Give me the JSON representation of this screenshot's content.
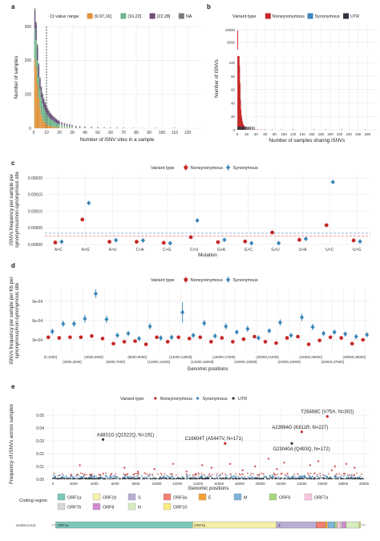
{
  "panels": {
    "a": "a",
    "b": "b",
    "c": "c",
    "d": "d",
    "e": "e"
  },
  "colors": {
    "ct1": "#e0923a",
    "ct2": "#6fb58a",
    "ct3": "#6a4e7c",
    "ct4": "#7a7a7a",
    "nonsyn": "#c62828",
    "syn": "#3a86b8",
    "utr": "#2e3540",
    "dash_red": "#e06060",
    "dash_blue": "#6090c8"
  },
  "chart_data": [
    {
      "id": "a",
      "type": "bar",
      "title": "",
      "xlabel": "Number of iSNV sites in a sample",
      "ylabel": "Number of samples",
      "legend_title": "Ct value range",
      "series": [
        {
          "name": "(9.97,16]"
        },
        {
          "name": "(16,22]"
        },
        {
          "name": "(22,28]"
        },
        {
          "name": "NA"
        }
      ],
      "xlim": [
        0,
        130
      ],
      "ylim": [
        0,
        300
      ],
      "xticks": [
        "0",
        "10",
        "20",
        "30",
        "40",
        "50",
        "60",
        "70",
        "80",
        "90",
        "100",
        "110",
        "120"
      ],
      "yticks": [
        "0",
        "100",
        "200",
        "300"
      ],
      "vline_x": 10,
      "bins": [
        {
          "x": 1,
          "v": [
            205,
            90,
            50,
            8
          ]
        },
        {
          "x": 2,
          "v": [
            180,
            80,
            45,
            8
          ]
        },
        {
          "x": 3,
          "v": [
            130,
            70,
            40,
            7
          ]
        },
        {
          "x": 4,
          "v": [
            90,
            60,
            35,
            6
          ]
        },
        {
          "x": 5,
          "v": [
            60,
            55,
            30,
            5
          ]
        },
        {
          "x": 6,
          "v": [
            40,
            50,
            28,
            5
          ]
        },
        {
          "x": 7,
          "v": [
            28,
            45,
            26,
            4
          ]
        },
        {
          "x": 8,
          "v": [
            20,
            40,
            24,
            4
          ]
        },
        {
          "x": 9,
          "v": [
            15,
            36,
            22,
            4
          ]
        },
        {
          "x": 10,
          "v": [
            12,
            32,
            20,
            3
          ]
        },
        {
          "x": 11,
          "v": [
            10,
            28,
            18,
            3
          ]
        },
        {
          "x": 12,
          "v": [
            8,
            25,
            16,
            3
          ]
        },
        {
          "x": 13,
          "v": [
            6,
            22,
            15,
            3
          ]
        },
        {
          "x": 14,
          "v": [
            5,
            20,
            14,
            2
          ]
        },
        {
          "x": 15,
          "v": [
            4,
            18,
            13,
            2
          ]
        },
        {
          "x": 16,
          "v": [
            4,
            16,
            12,
            2
          ]
        },
        {
          "x": 17,
          "v": [
            3,
            14,
            11,
            2
          ]
        },
        {
          "x": 18,
          "v": [
            3,
            12,
            10,
            2
          ]
        },
        {
          "x": 19,
          "v": [
            2,
            11,
            9,
            2
          ]
        },
        {
          "x": 20,
          "v": [
            2,
            10,
            9,
            1
          ]
        },
        {
          "x": 22,
          "v": [
            2,
            8,
            7,
            1
          ]
        },
        {
          "x": 24,
          "v": [
            1,
            7,
            6,
            1
          ]
        },
        {
          "x": 26,
          "v": [
            1,
            6,
            5,
            1
          ]
        },
        {
          "x": 28,
          "v": [
            1,
            5,
            5,
            1
          ]
        },
        {
          "x": 30,
          "v": [
            1,
            4,
            4,
            1
          ]
        },
        {
          "x": 33,
          "v": [
            0,
            3,
            3,
            1
          ]
        },
        {
          "x": 36,
          "v": [
            0,
            3,
            3,
            0
          ]
        },
        {
          "x": 40,
          "v": [
            0,
            2,
            2,
            1
          ]
        },
        {
          "x": 45,
          "v": [
            0,
            2,
            2,
            0
          ]
        },
        {
          "x": 50,
          "v": [
            0,
            1,
            2,
            0
          ]
        },
        {
          "x": 55,
          "v": [
            0,
            1,
            1,
            1
          ]
        },
        {
          "x": 60,
          "v": [
            0,
            1,
            1,
            0
          ]
        },
        {
          "x": 65,
          "v": [
            0,
            1,
            1,
            0
          ]
        },
        {
          "x": 70,
          "v": [
            0,
            1,
            1,
            0
          ]
        },
        {
          "x": 78,
          "v": [
            0,
            0,
            1,
            0
          ]
        },
        {
          "x": 85,
          "v": [
            0,
            1,
            0,
            0
          ]
        },
        {
          "x": 95,
          "v": [
            0,
            0,
            1,
            0
          ]
        },
        {
          "x": 110,
          "v": [
            0,
            0,
            1,
            0
          ]
        }
      ]
    },
    {
      "id": "b",
      "type": "bar",
      "title": "",
      "xlabel": "Number of samples sharing iSNVs",
      "ylabel": "Number of iSNVs",
      "legend_title": "Variant type",
      "series": [
        {
          "name": "Nonsynonymous"
        },
        {
          "name": "Synonymous"
        },
        {
          "name": "UTR"
        }
      ],
      "xticks": [
        "0",
        "20",
        "40",
        "60",
        "80",
        "100",
        "120",
        "140",
        "160",
        "180",
        "200",
        "220",
        "240",
        "260",
        "280"
      ],
      "yticks_upper": [
        "5000",
        "10000"
      ],
      "yticks_lower": [
        "0",
        "20",
        "40",
        "60",
        "80",
        "100"
      ],
      "xlim": [
        0,
        300
      ],
      "bins": [
        {
          "x": 1,
          "v": [
            9800,
            0,
            0
          ]
        },
        {
          "x": 2,
          "v": [
            1900,
            0,
            0
          ]
        },
        {
          "x": 3,
          "v": [
            520,
            0,
            0
          ]
        },
        {
          "x": 4,
          "v": [
            210,
            0,
            0
          ]
        },
        {
          "x": 5,
          "v": [
            96,
            0,
            0
          ]
        },
        {
          "x": 6,
          "v": [
            70,
            0,
            0
          ]
        },
        {
          "x": 7,
          "v": [
            45,
            0,
            0
          ]
        },
        {
          "x": 8,
          "v": [
            30,
            0,
            0
          ]
        },
        {
          "x": 9,
          "v": [
            22,
            0,
            0
          ]
        },
        {
          "x": 10,
          "v": [
            17,
            0,
            0
          ]
        },
        {
          "x": 11,
          "v": [
            13,
            0,
            0
          ]
        },
        {
          "x": 12,
          "v": [
            10,
            0,
            0
          ]
        },
        {
          "x": 13,
          "v": [
            8,
            0,
            0
          ]
        },
        {
          "x": 14,
          "v": [
            7,
            0,
            0
          ]
        },
        {
          "x": 15,
          "v": [
            6,
            0,
            0
          ]
        },
        {
          "x": 17,
          "v": [
            5,
            0,
            0
          ]
        },
        {
          "x": 19,
          "v": [
            4,
            0,
            0
          ]
        },
        {
          "x": 22,
          "v": [
            3,
            0,
            0
          ]
        },
        {
          "x": 25,
          "v": [
            3,
            0,
            0
          ]
        },
        {
          "x": 28,
          "v": [
            2,
            0,
            0
          ]
        },
        {
          "x": 32,
          "v": [
            2,
            0,
            0
          ]
        },
        {
          "x": 36,
          "v": [
            2,
            0,
            0
          ]
        },
        {
          "x": 40,
          "v": [
            1,
            0,
            0
          ]
        },
        {
          "x": 45,
          "v": [
            1,
            0,
            0
          ]
        },
        {
          "x": 52,
          "v": [
            1,
            0,
            0
          ]
        },
        {
          "x": 60,
          "v": [
            1,
            0,
            0
          ]
        },
        {
          "x": 75,
          "v": [
            1,
            0,
            0
          ]
        },
        {
          "x": 95,
          "v": [
            1,
            0,
            0
          ]
        },
        {
          "x": 120,
          "v": [
            1,
            0,
            0
          ]
        },
        {
          "x": 165,
          "v": [
            1,
            0,
            0
          ]
        },
        {
          "x": 190,
          "v": [
            1,
            0,
            0
          ]
        },
        {
          "x": 225,
          "v": [
            1,
            0,
            0
          ]
        },
        {
          "x": 275,
          "v": [
            1,
            0,
            0
          ]
        }
      ]
    },
    {
      "id": "c",
      "type": "scatter",
      "title": "",
      "xlabel": "Mutation",
      "ylabel": "iSNVs frequency per sample per synonymous/non-synonymous site",
      "legend_title": "Variant type",
      "series": [
        {
          "name": "Nonsynonymous"
        },
        {
          "name": "Synonymous"
        }
      ],
      "categories": [
        "A>C",
        "A>G",
        "A>U",
        "C>A",
        "C>G",
        "C>U",
        "G>A",
        "G>C",
        "G>U",
        "U>A",
        "U>C",
        "U>G"
      ],
      "nonsyn": [
        6e-06,
        7.5e-05,
        8e-06,
        8e-06,
        5e-06,
        2.2e-05,
        7e-06,
        9e-06,
        3.6e-05,
        1.4e-05,
        5.8e-05,
        1.2e-05
      ],
      "syn": [
        8e-06,
        0.000125,
        1.3e-05,
        1.2e-05,
        4e-06,
        7.2e-05,
        1.4e-05,
        4e-06,
        4e-06,
        1.7e-05,
        0.000188,
        9e-06
      ],
      "hline_nonsyn": 2.5e-05,
      "hline_syn": 3.4e-05,
      "ylim": [
        0,
        0.00021
      ],
      "yticks": [
        "0.00000",
        "0.00005",
        "0.00010",
        "0.00015",
        "0.00020"
      ]
    },
    {
      "id": "d",
      "type": "scatter",
      "title": "",
      "xlabel": "Genomic positions",
      "ylabel": "iSNVs frequency per sample per Kb per synonymous/non-synonymous site",
      "legend_title": "Variant type",
      "series": [
        {
          "name": "Nonsynonymous"
        },
        {
          "name": "Synonymous"
        }
      ],
      "categories": [
        "(0,1000]",
        "(1000,2000]",
        "(2000,3000]",
        "(3000,4000]",
        "(4000,5000]",
        "(5000,6000]",
        "(6000,7000]",
        "(7000,8000]",
        "(8000,9000]",
        "(9000,10000]",
        "(10000,11000]",
        "(11000,12000]",
        "(12000,13000]",
        "(13000,14000]",
        "(14000,15000]",
        "(15000,16000]",
        "(16000,17000]",
        "(17000,18000]",
        "(18000,19000]",
        "(19000,20000]",
        "(20000,21000]",
        "(21000,22000]",
        "(22000,23000]",
        "(23000,24000]",
        "(24000,25000]",
        "(25000,26000]",
        "(26000,27000]",
        "(27000,28000]",
        "(28000,29000]",
        "(29000,30000]"
      ],
      "tick_labels_row1": [
        "(0,1000]",
        "(4000,5000]",
        "(8000,9000]",
        "(12000,13000]",
        "(16000,17000]",
        "(20000,21000]",
        "(24000,25000]",
        "(28000,29000]"
      ],
      "tick_labels_row2": [
        "(2000,3000]",
        "(6000,7000]",
        "(10000,11000]",
        "(14000,15000]",
        "(18000,19000]",
        "(22000,23000]",
        "(26000,27000]"
      ],
      "nonsyn": [
        0.00034,
        0.00033,
        0.00034,
        0.00034,
        0.00036,
        0.00032,
        0.00024,
        0.00027,
        0.00028,
        0.00023,
        0.00034,
        0.00027,
        0.00034,
        0.00032,
        0.00034,
        0.00027,
        0.00033,
        0.00027,
        0.00031,
        0.00035,
        0.00027,
        0.00025,
        0.00033,
        0.00035,
        0.00023,
        0.00029,
        0.00034,
        0.00033,
        0.00024,
        0.0003
      ],
      "syn": [
        0.00043,
        0.00055,
        0.00055,
        0.00063,
        0.00102,
        0.00062,
        0.00037,
        0.0004,
        0.00032,
        0.00051,
        0.00033,
        0.00034,
        0.00073,
        0.00037,
        0.00056,
        0.00036,
        0.00051,
        0.00042,
        0.00047,
        0.00033,
        0.00044,
        0.00057,
        0.00037,
        0.00065,
        0.0005,
        0.0004,
        0.00042,
        0.00039,
        0.00035,
        0.00038
      ],
      "syn_err": [
        5e-05,
        5e-05,
        5e-05,
        6e-05,
        7e-05,
        6e-05,
        4e-05,
        4e-05,
        4e-05,
        5e-05,
        4e-05,
        4e-05,
        0.00016,
        4e-05,
        5e-05,
        4e-05,
        5e-05,
        4e-05,
        5e-05,
        4e-05,
        4e-05,
        5e-05,
        4e-05,
        6e-05,
        5e-05,
        4e-05,
        4e-05,
        4e-05,
        4e-05,
        4e-05
      ],
      "ylim": [
        0.0001,
        0.0011
      ],
      "yticks": [
        "3e-04",
        "6e-04",
        "9e-04"
      ]
    },
    {
      "id": "e",
      "type": "scatter",
      "title": "",
      "xlabel": "Genomic positions",
      "ylabel": "Frequency of iSNVs across samples",
      "legend_title": "Variant type",
      "series": [
        {
          "name": "Nonsynonymous"
        },
        {
          "name": "Synonymous"
        },
        {
          "name": "UTR"
        }
      ],
      "xticks": [
        "0",
        "2000",
        "4000",
        "6000",
        "8000",
        "10000",
        "12000",
        "14000",
        "16000",
        "18000",
        "20000",
        "22000",
        "24000",
        "26000",
        "28000",
        "30000"
      ],
      "yticks": [
        "0.00",
        "0.01",
        "0.02",
        "0.03",
        "0.04",
        "0.05"
      ],
      "xlim": [
        0,
        30000
      ],
      "ylim": [
        0,
        0.055
      ],
      "annotations": [
        {
          "label": "T26468C (V75A, N=302)",
          "x": 26468,
          "y": 0.049
        },
        {
          "label": "A4831G (Q1522Q, N=191)",
          "x": 4831,
          "y": 0.031
        },
        {
          "label": "A23994G (K811R, N=227)",
          "x": 23994,
          "y": 0.037
        },
        {
          "label": "C16604T (A5447V, N=171)",
          "x": 16604,
          "y": 0.028
        },
        {
          "label": "G23040A (Q493Q, N=172)",
          "x": 23040,
          "y": 0.028
        }
      ],
      "highlight_points": [
        {
          "x": 26468,
          "y": 0.049,
          "t": "nonsyn"
        },
        {
          "x": 4831,
          "y": 0.031,
          "t": "syn"
        },
        {
          "x": 23994,
          "y": 0.037,
          "t": "nonsyn"
        },
        {
          "x": 16604,
          "y": 0.028,
          "t": "nonsyn"
        },
        {
          "x": 23040,
          "y": 0.028,
          "t": "syn"
        }
      ],
      "outliers": [
        {
          "x": 2600,
          "y": 0.011
        },
        {
          "x": 6900,
          "y": 0.009
        },
        {
          "x": 9800,
          "y": 0.008
        },
        {
          "x": 11600,
          "y": 0.012
        },
        {
          "x": 14400,
          "y": 0.011
        },
        {
          "x": 15300,
          "y": 0.009
        },
        {
          "x": 17100,
          "y": 0.012
        },
        {
          "x": 19500,
          "y": 0.01
        },
        {
          "x": 20800,
          "y": 0.016
        },
        {
          "x": 22300,
          "y": 0.013
        },
        {
          "x": 24800,
          "y": 0.011
        },
        {
          "x": 25600,
          "y": 0.014
        },
        {
          "x": 27200,
          "y": 0.01
        },
        {
          "x": 28300,
          "y": 0.012
        },
        {
          "x": 29100,
          "y": 0.009
        },
        {
          "x": 8200,
          "y": 0.006
        },
        {
          "x": 12900,
          "y": 0.006
        },
        {
          "x": 18300,
          "y": 0.007
        },
        {
          "x": 21600,
          "y": 0.008
        },
        {
          "x": 26900,
          "y": 0.007
        }
      ]
    }
  ],
  "genome": {
    "legend_title": "Coding region",
    "label": "SARS-CoV2",
    "regions": [
      {
        "name": "ORF1a",
        "start": 266,
        "end": 13483,
        "color": "#7cc7b8"
      },
      {
        "name": "ORF1b",
        "start": 13468,
        "end": 21555,
        "color": "#f6f0a8"
      },
      {
        "name": "S",
        "start": 21563,
        "end": 25384,
        "color": "#b8aed6"
      },
      {
        "name": "ORF3a",
        "start": 25393,
        "end": 26220,
        "color": "#f08070"
      },
      {
        "name": "E",
        "start": 26245,
        "end": 26472,
        "color": "#f6a23a"
      },
      {
        "name": "M",
        "start": 26523,
        "end": 27191,
        "color": "#7fb4d8"
      },
      {
        "name": "ORF6",
        "start": 27202,
        "end": 27387,
        "color": "#a8d880"
      },
      {
        "name": "ORF7a",
        "start": 27394,
        "end": 27759,
        "color": "#f7c6dc"
      },
      {
        "name": "ORF7b",
        "start": 27756,
        "end": 27887,
        "color": "#d8d8d8"
      },
      {
        "name": "ORF8",
        "start": 27894,
        "end": 28259,
        "color": "#d08ad0"
      },
      {
        "name": "N",
        "start": 28274,
        "end": 29533,
        "color": "#d8ecc0"
      },
      {
        "name": "ORF10",
        "start": 29558,
        "end": 29674,
        "color": "#f8ec80"
      }
    ]
  }
}
